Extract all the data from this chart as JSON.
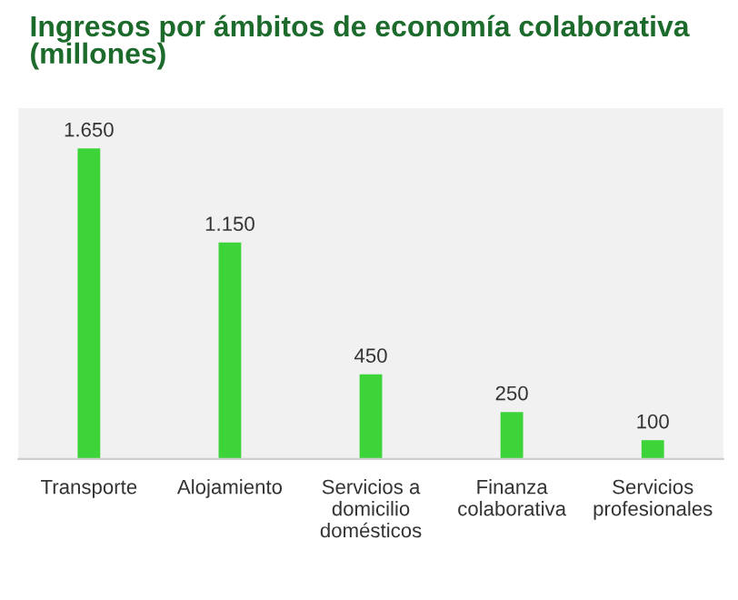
{
  "chart_data": {
    "type": "bar",
    "title": "Ingresos por ámbitos de economía colaborativa\n(millones)",
    "categories": [
      "Transporte",
      "Alojamiento",
      "Servicios a\ndomicilio\ndomésticos",
      "Finanza\ncolaborativa",
      "Servicios\nprofesionales"
    ],
    "values": [
      1650,
      1150,
      450,
      250,
      100
    ],
    "value_labels": [
      "1.650",
      "1.150",
      "450",
      "250",
      "100"
    ],
    "color": "#3dd43a",
    "grid": false
  }
}
